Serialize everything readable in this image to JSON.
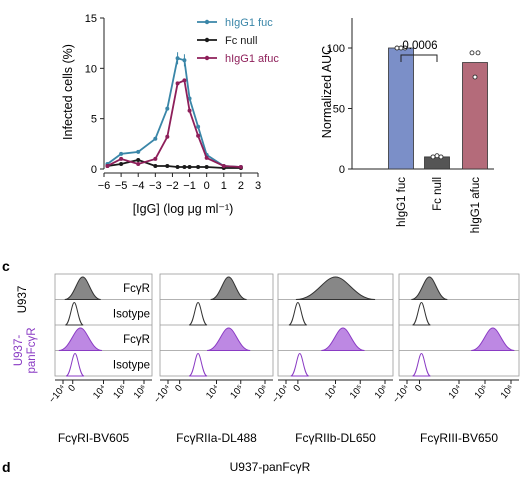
{
  "colors": {
    "fuc": "#3a86a8",
    "null": "#1a1a1a",
    "afuc": "#8e1f5a",
    "bar_fuc": "#7b8fc8",
    "bar_null": "#555555",
    "bar_afuc": "#b46b7a",
    "purple_fill": "#b67be0",
    "purple_line": "#8a3bc4",
    "gray_fill": "#7a7a7a",
    "u937_label": "#8a3bc4"
  },
  "panel_c_label": "c",
  "panel_d_label": "d",
  "panel_d_title": "U937-panFcγR",
  "chart_data": [
    {
      "type": "line",
      "ylabel": "Infected cells (%)",
      "xlabel": "[IgG] (log μg ml⁻¹)",
      "xlim": [
        -6,
        3
      ],
      "ylim": [
        0,
        15
      ],
      "xticks": [
        "−6",
        "−5",
        "−4",
        "−3",
        "−2",
        "−1",
        "0",
        "1",
        "2",
        "3"
      ],
      "yticks": [
        "0",
        "5",
        "10",
        "15"
      ],
      "series": [
        {
          "name": "hIgG1 fuc",
          "color_key": "fuc",
          "x": [
            -5.8,
            -5,
            -4,
            -3,
            -2.3,
            -1.7,
            -1.3,
            -1,
            -0.5,
            0,
            1,
            2
          ],
          "y": [
            0.5,
            1.5,
            1.7,
            3.0,
            6.0,
            11.0,
            10.8,
            7.0,
            4.2,
            1.4,
            0.3,
            0.2
          ]
        },
        {
          "name": "Fc null",
          "color_key": "null",
          "x": [
            -5.8,
            -5,
            -4,
            -3,
            -2.3,
            -1.7,
            -1.3,
            -1,
            -0.5,
            0,
            1,
            2
          ],
          "y": [
            0.3,
            0.5,
            0.9,
            0.3,
            0.3,
            0.2,
            0.2,
            0.2,
            0.2,
            0.2,
            0.1,
            0.1
          ]
        },
        {
          "name": "hIgG1 afuc",
          "color_key": "afuc",
          "x": [
            -5.8,
            -5,
            -4,
            -3,
            -2.3,
            -1.7,
            -1.3,
            -1,
            -0.5,
            0,
            1,
            2
          ],
          "y": [
            0.3,
            1.0,
            0.5,
            1.0,
            3.2,
            8.5,
            8.8,
            5.8,
            3.3,
            1.1,
            0.3,
            0.2
          ]
        }
      ]
    },
    {
      "type": "bar",
      "ylabel": "Normalized AUC",
      "ylim": [
        0,
        100
      ],
      "yticks": [
        "0",
        "50",
        "100"
      ],
      "categories": [
        "hIgG1 fuc",
        "Fc null",
        "hIgG1 afuc"
      ],
      "values": [
        100,
        10,
        88
      ],
      "color_keys": [
        "bar_fuc",
        "bar_null",
        "bar_afuc"
      ],
      "points": [
        [
          100,
          100,
          100
        ],
        [
          10,
          11,
          10
        ],
        [
          96,
          96,
          76
        ]
      ],
      "annotation": "0.0006"
    },
    {
      "type": "histogram",
      "row_labels": [
        "FcγR",
        "Isotype",
        "FcγR",
        "Isotype"
      ],
      "group_labels": [
        "U937",
        "U937-\npanFcγR"
      ],
      "columns": [
        "FcγRI-BV605",
        "FcγRIIa-DL488",
        "FcγRIIb-DL650",
        "FcγRIII-BV650"
      ],
      "xticks": [
        "−10⁴",
        "0",
        "10⁴",
        "10⁵",
        "10⁶"
      ],
      "xtick_values": [
        -4,
        0,
        4,
        5,
        6
      ],
      "histogram_peaks": [
        {
          "u937_fcgr": 1.3,
          "u937_iso": 0.2,
          "pan_fcgr": 1.0,
          "pan_iso": 0.3
        },
        {
          "u937_fcgr": 4.5,
          "u937_iso": 2.0,
          "pan_fcgr": 4.5,
          "pan_iso": 2.0
        },
        {
          "u937_fcgr": 4.0,
          "u937_iso": 0.0,
          "pan_fcgr": 4.3,
          "pan_iso": 0.2
        },
        {
          "u937_fcgr": 1.0,
          "u937_iso": 0.2,
          "pan_fcgr": 5.3,
          "pan_iso": 0.2
        }
      ]
    }
  ]
}
